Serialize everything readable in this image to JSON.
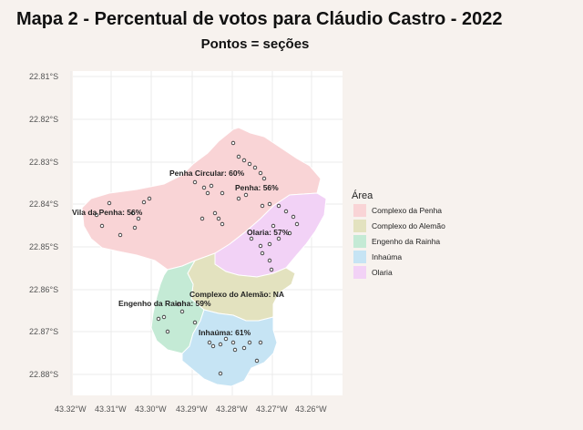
{
  "title": "Mapa 2 - Percentual de votos para Cláudio Castro - 2022",
  "subtitle": "Pontos = seções",
  "axes": {
    "y_ticks": [
      "22.81°S",
      "22.82°S",
      "22.83°S",
      "22.84°S",
      "22.85°S",
      "22.86°S",
      "22.87°S",
      "22.88°S"
    ],
    "x_ticks": [
      "43.32°W",
      "43.31°W",
      "43.30°W",
      "43.29°W",
      "43.28°W",
      "43.27°W",
      "43.26°W"
    ]
  },
  "legend": {
    "title": "Área",
    "items": [
      {
        "label": "Complexo da Penha",
        "color": "#f9d4d6"
      },
      {
        "label": "Complexo do Alemão",
        "color": "#e3e2bf"
      },
      {
        "label": "Engenho da Rainha",
        "color": "#c4ead5"
      },
      {
        "label": "Inhaúma",
        "color": "#c6e4f4"
      },
      {
        "label": "Olaria",
        "color": "#f2d2f6"
      }
    ]
  },
  "labels": {
    "penha_circular": "Penha Circular: 60%",
    "penha": "Penha: 56%",
    "vila_da_penha": "Vila da Penha: 56%",
    "olaria": "Olaria: 57%",
    "complexo_alemao": "Complexo do Alemão: NA",
    "engenho_rainha": "Engenho da Rainha: 59%",
    "inhauma": "Inhaúma: 61%"
  }
}
